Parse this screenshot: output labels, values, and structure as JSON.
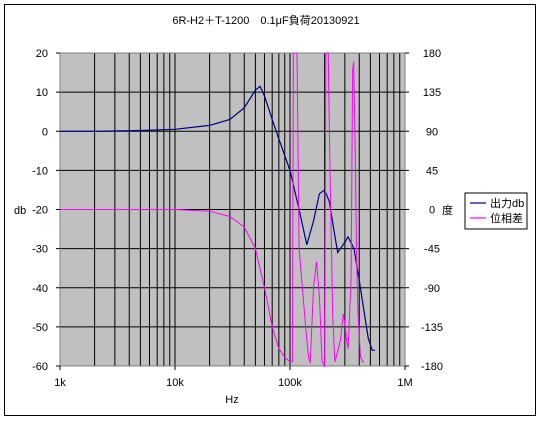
{
  "chart_data": {
    "type": "line",
    "title": "6R-H2＋T-1200　0.1μF負荷20130921",
    "xlabel": "Hz",
    "ylabel_left": "db",
    "ylabel_right": "度",
    "x_scale": "log",
    "xlim": [
      1000,
      1000000
    ],
    "ylim_left": [
      -60,
      20
    ],
    "ylim_right": [
      -180,
      180
    ],
    "x_tick_labels": [
      {
        "value": 1000,
        "label": "1k"
      },
      {
        "value": 10000,
        "label": "10k"
      },
      {
        "value": 100000,
        "label": "100k"
      },
      {
        "value": 1000000,
        "label": "1M"
      }
    ],
    "y_left_ticks": [
      20,
      10,
      0,
      -10,
      -20,
      -30,
      -40,
      -50,
      -60
    ],
    "y_right_ticks": [
      180,
      135,
      90,
      45,
      0,
      -45,
      -90,
      -135,
      -180
    ],
    "grid": true,
    "legend_position": "right",
    "series": [
      {
        "name": "出力db",
        "color": "#000080",
        "axis": "left",
        "points": [
          [
            1000,
            0
          ],
          [
            2000,
            0
          ],
          [
            5000,
            0.2
          ],
          [
            10000,
            0.5
          ],
          [
            20000,
            1.5
          ],
          [
            30000,
            3
          ],
          [
            40000,
            6
          ],
          [
            50000,
            10.5
          ],
          [
            55000,
            11.5
          ],
          [
            60000,
            9
          ],
          [
            70000,
            3
          ],
          [
            80000,
            -2
          ],
          [
            100000,
            -10
          ],
          [
            120000,
            -20
          ],
          [
            140000,
            -29
          ],
          [
            160000,
            -23
          ],
          [
            180000,
            -16
          ],
          [
            200000,
            -15
          ],
          [
            220000,
            -18
          ],
          [
            240000,
            -25
          ],
          [
            260000,
            -31
          ],
          [
            290000,
            -29
          ],
          [
            320000,
            -27
          ],
          [
            360000,
            -30
          ],
          [
            400000,
            -38
          ],
          [
            440000,
            -46
          ],
          [
            480000,
            -53
          ],
          [
            520000,
            -56
          ],
          [
            550000,
            -56
          ]
        ]
      },
      {
        "name": "位相差",
        "color": "#FF00FF",
        "axis": "right",
        "points": [
          [
            1000,
            0
          ],
          [
            5000,
            0
          ],
          [
            10000,
            0
          ],
          [
            20000,
            -2
          ],
          [
            30000,
            -8
          ],
          [
            40000,
            -20
          ],
          [
            50000,
            -45
          ],
          [
            60000,
            -90
          ],
          [
            70000,
            -135
          ],
          [
            80000,
            -160
          ],
          [
            90000,
            -170
          ],
          [
            100000,
            -175
          ],
          [
            105000,
            -175
          ],
          [
            107000,
            180
          ],
          [
            115000,
            180
          ],
          [
            120000,
            -45
          ],
          [
            130000,
            -100
          ],
          [
            140000,
            -150
          ],
          [
            145000,
            -170
          ],
          [
            150000,
            -177
          ],
          [
            150500,
            -172
          ],
          [
            160000,
            -90
          ],
          [
            170000,
            -60
          ],
          [
            180000,
            -100
          ],
          [
            190000,
            -175
          ],
          [
            200000,
            -180
          ],
          [
            205000,
            180
          ],
          [
            215000,
            180
          ],
          [
            222000,
            60
          ],
          [
            235000,
            -120
          ],
          [
            245000,
            -175
          ],
          [
            250000,
            -172
          ],
          [
            275000,
            -150
          ],
          [
            290000,
            -120
          ],
          [
            300000,
            -130
          ],
          [
            310000,
            -150
          ],
          [
            320000,
            -160
          ],
          [
            340000,
            -80
          ],
          [
            350000,
            160
          ],
          [
            358000,
            170
          ],
          [
            370000,
            60
          ],
          [
            380000,
            -60
          ],
          [
            390000,
            -120
          ],
          [
            410000,
            -170
          ],
          [
            430000,
            -175
          ],
          [
            440000,
            -175
          ]
        ]
      }
    ]
  }
}
